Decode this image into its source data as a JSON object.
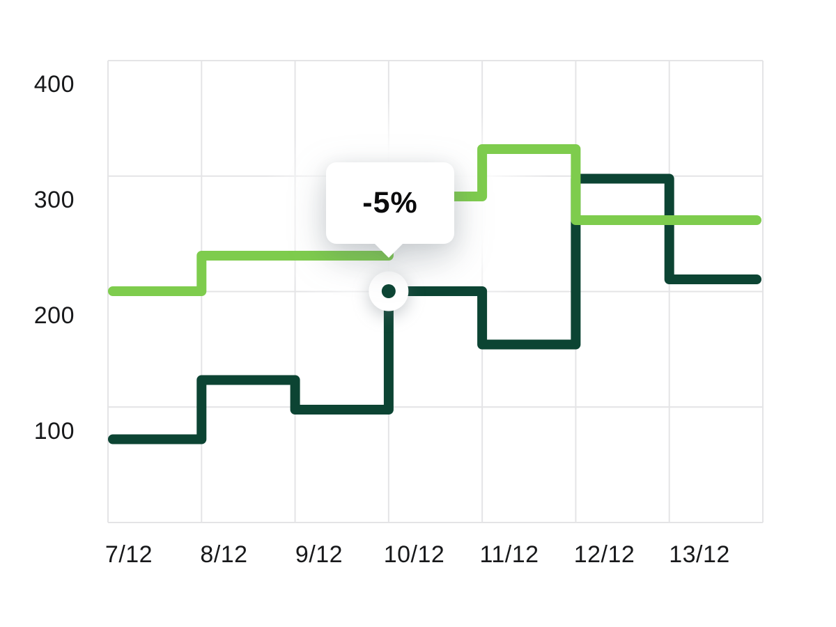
{
  "chart_data": {
    "type": "line",
    "line_style": "step",
    "title": "",
    "xlabel": "",
    "ylabel": "",
    "grid": true,
    "legend_position": "none",
    "categories": [
      "7/12",
      "8/12",
      "9/12",
      "10/12",
      "11/12",
      "12/12",
      "13/12"
    ],
    "y_tick_labels": [
      "400",
      "300",
      "200",
      "100"
    ],
    "y_axis_range": [
      0,
      450
    ],
    "series": [
      {
        "name": "upper-light-green-line",
        "color": "#7ECC4D",
        "values": [
          220,
          250,
          250,
          300,
          340,
          280,
          280
        ]
      },
      {
        "name": "lower-dark-green-line",
        "color": "#0C4433",
        "values": [
          95,
          145,
          120,
          220,
          175,
          315,
          230
        ]
      }
    ],
    "annotation": {
      "tooltip_label": "-5%",
      "attached_series": "lower-dark-green-line",
      "boundary_index": 3,
      "at_category": "10/12",
      "value": 220
    }
  },
  "colors": {
    "series_upper": "#7ECC4D",
    "series_lower": "#0C4433",
    "grid": "#E4E4E6",
    "axis_label": "#17181A",
    "tooltip_text": "#0B0B0C",
    "tooltip_bubble": "#FFFFFF",
    "background": "#FFFFFF"
  }
}
